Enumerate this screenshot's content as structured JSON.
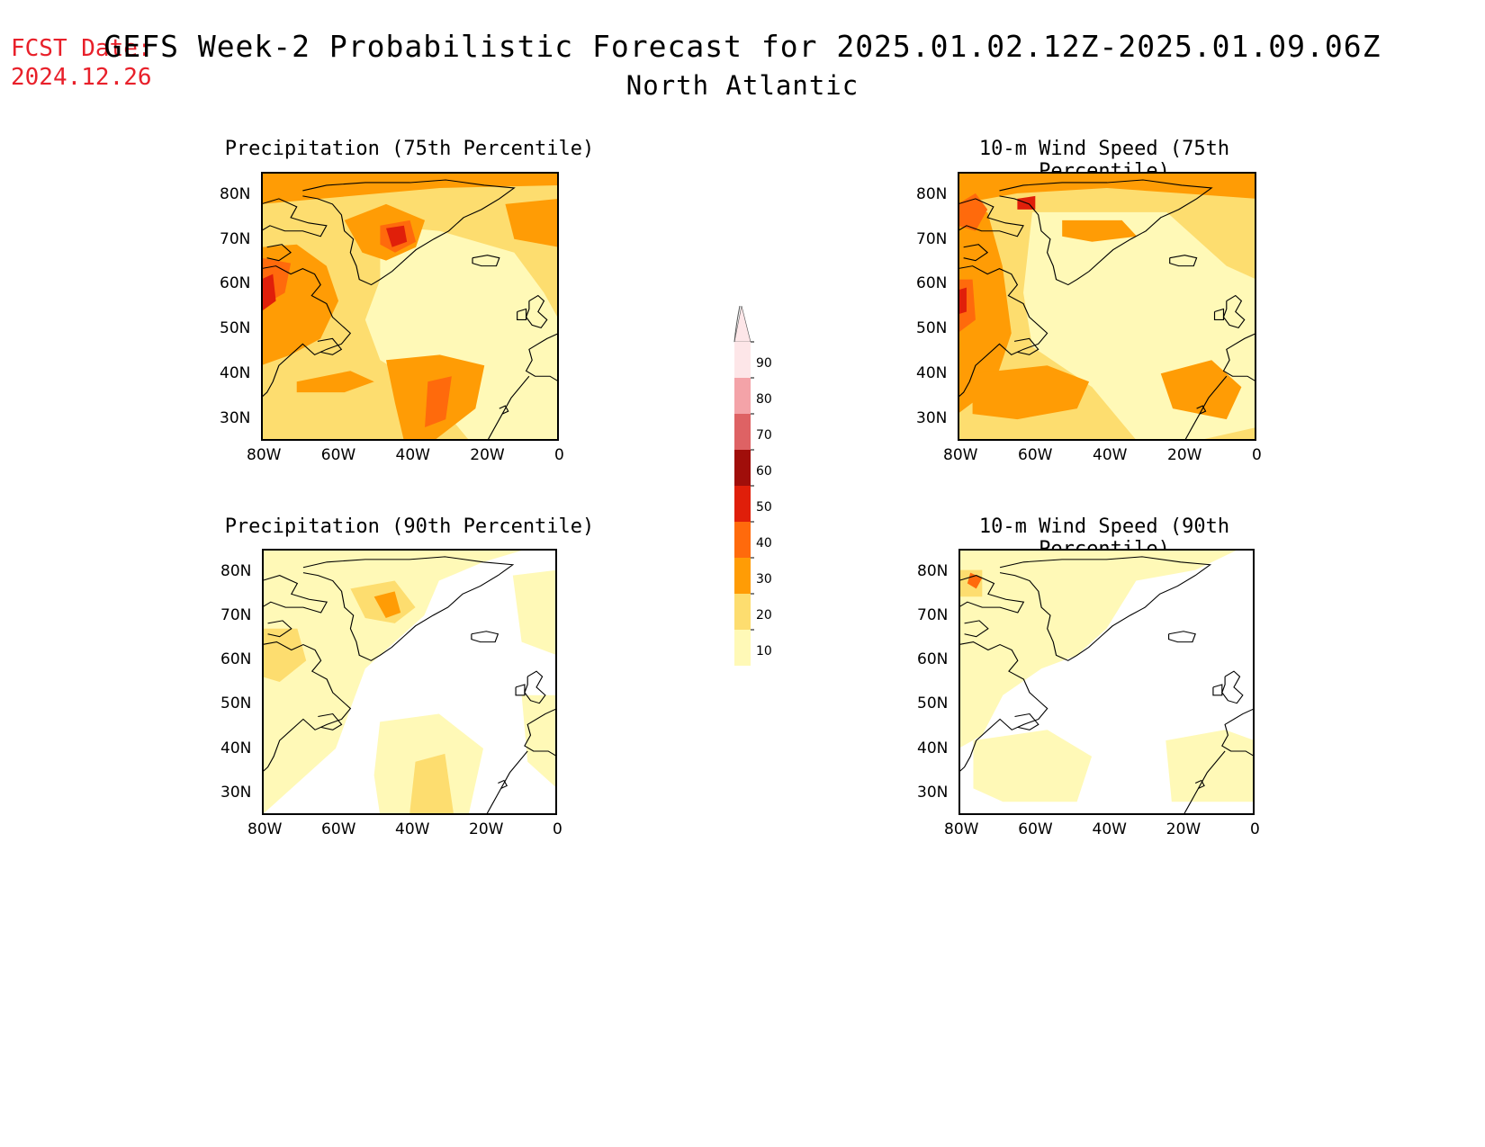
{
  "header": {
    "fcst_label": "FCST Date:",
    "fcst_date": "2024.12.26",
    "title": "GEFS Week-2 Probabilistic Forecast for 2025.01.02.12Z-2025.01.09.06Z",
    "subtitle": "North Atlantic"
  },
  "panels": [
    {
      "title": "Precipitation (75th Percentile)"
    },
    {
      "title": "10-m Wind Speed (75th Percentile)"
    },
    {
      "title": "Precipitation (90th Percentile)"
    },
    {
      "title": "10-m Wind Speed (90th Percentile)"
    }
  ],
  "axes": {
    "lat_labels": [
      "80N",
      "70N",
      "60N",
      "50N",
      "40N",
      "30N"
    ],
    "lon_labels": [
      "80W",
      "60W",
      "40W",
      "20W",
      "0"
    ]
  },
  "colorbar": {
    "labels": [
      "90",
      "80",
      "70",
      "60",
      "50",
      "40",
      "30",
      "20",
      "10"
    ],
    "colors": [
      "#fde6e8",
      "#f4a3a8",
      "#de6264",
      "#a00e0a",
      "#e01f0a",
      "#ff6a0c",
      "#ff9c05",
      "#fddd6f",
      "#fff9b7"
    ]
  }
}
